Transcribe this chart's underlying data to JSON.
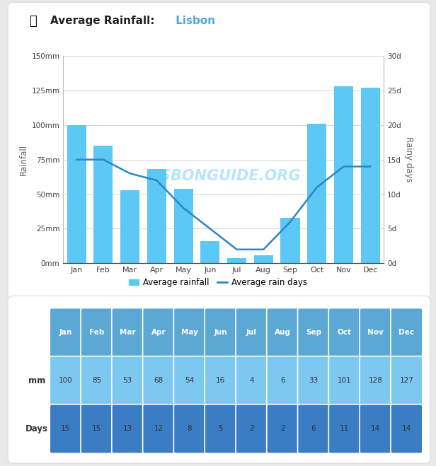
{
  "months": [
    "Jan",
    "Feb",
    "Mar",
    "Apr",
    "May",
    "Jun",
    "Jul",
    "Aug",
    "Sep",
    "Oct",
    "Nov",
    "Dec"
  ],
  "rainfall_mm": [
    100,
    85,
    53,
    68,
    54,
    16,
    4,
    6,
    33,
    101,
    128,
    127
  ],
  "rain_days": [
    15,
    15,
    13,
    12,
    8,
    5,
    2,
    2,
    6,
    11,
    14,
    14
  ],
  "title_bold": "Average Rainfall:",
  "title_city": " Lisbon",
  "ylabel_left": "Rainfall",
  "ylabel_right": "Rainy days",
  "ylim_mm": [
    0,
    150
  ],
  "ylim_days": [
    0,
    30
  ],
  "yticks_mm": [
    0,
    25,
    50,
    75,
    100,
    125,
    150
  ],
  "yticks_days": [
    0,
    5,
    10,
    15,
    20,
    25,
    30
  ],
  "ytick_labels_mm": [
    "0mm",
    "25mm",
    "50mm",
    "75mm",
    "100mm",
    "125mm",
    "150mm"
  ],
  "ytick_labels_days": [
    "0d",
    "5d",
    "10d",
    "15d",
    "20d",
    "25d",
    "30d"
  ],
  "bar_color": "#5BC8F5",
  "line_color": "#2E86C1",
  "grid_color": "#d0d0d0",
  "outer_bg": "#e8e8e8",
  "panel_bg": "#ffffff",
  "panel_border": "#dddddd",
  "title_color": "#222222",
  "city_color": "#4da6e0",
  "watermark_text": "LISBONGUIDE.ORG",
  "watermark_color": "#5BC8F5",
  "watermark_alpha": 0.45,
  "legend_bar_label": "Average rainfall",
  "legend_line_label": "Average rain days",
  "table_header_color": "#5ba8d4",
  "table_mm_color": "#7dc8f0",
  "table_days_color": "#3a7dc4",
  "table_bg": "#ffffff"
}
